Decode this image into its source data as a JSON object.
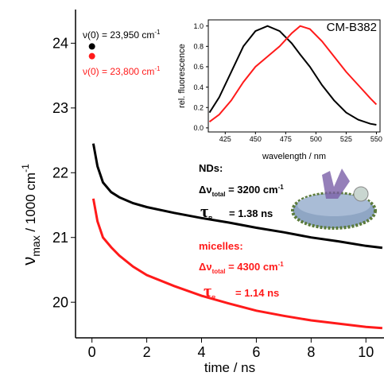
{
  "chart_data": [
    {
      "type": "line",
      "x_label": "time / ns",
      "y_label": [
        "ν",
        "max",
        " / 1000 cm",
        "-1"
      ],
      "xlim": [
        -0.6,
        10.66
      ],
      "ylim": [
        19.45,
        24.52
      ],
      "xticks": [
        0,
        2,
        4,
        6,
        8,
        10
      ],
      "yticks": [
        20,
        21,
        22,
        23,
        24
      ],
      "x": [
        0.05,
        0.2,
        0.4,
        0.7,
        1,
        1.5,
        2,
        3,
        4,
        5,
        6,
        7,
        8,
        9,
        10,
        10.6
      ],
      "series": [
        {
          "color": "#000000",
          "values": [
            22.45,
            22.1,
            21.85,
            21.7,
            21.62,
            21.53,
            21.47,
            21.38,
            21.3,
            21.23,
            21.15,
            21.08,
            21.0,
            20.94,
            20.87,
            20.84
          ]
        },
        {
          "color": "#ff1a1a",
          "values": [
            21.6,
            21.25,
            21.0,
            20.85,
            20.72,
            20.55,
            20.42,
            20.25,
            20.1,
            19.98,
            19.87,
            19.79,
            19.72,
            19.67,
            19.62,
            19.6
          ]
        }
      ],
      "points": [
        {
          "x": 0,
          "y": 23.95,
          "color": "#000000"
        },
        {
          "x": 0,
          "y": 23.8,
          "color": "#ff1a1a"
        }
      ],
      "annotations": [
        {
          "parts": [
            "ν(0) = 23,950 cm",
            "-1"
          ]
        },
        {
          "parts": [
            "ν(0) = 23,800 cm",
            "-1"
          ]
        },
        {
          "parts": [
            "NDs:"
          ]
        },
        {
          "parts": [
            "Δν",
            "total",
            " = 3200 cm",
            "-1"
          ]
        },
        {
          "parts": [
            "τ",
            "R",
            "= 1.38 ns"
          ]
        },
        {
          "parts": [
            "micelles:"
          ]
        },
        {
          "parts": [
            "Δν",
            "total",
            " = 4300 cm",
            "-1"
          ]
        },
        {
          "parts": [
            "τ",
            "R",
            "= 1.14 ns"
          ]
        }
      ]
    },
    {
      "type": "line",
      "title": "CM-B382",
      "x_label": "wavelength / nm",
      "y_label": "rel. fluorescence",
      "xlim": [
        411,
        553
      ],
      "ylim": [
        -0.04,
        1.06
      ],
      "xticks": [
        425,
        450,
        475,
        500,
        525,
        550
      ],
      "yticks": [
        {
          "value": 0,
          "label": "0.0"
        },
        {
          "value": 0.2,
          "label": "0.2"
        },
        {
          "value": 0.4,
          "label": "0.4"
        },
        {
          "value": 0.6,
          "label": "0.6"
        },
        {
          "value": 0.8,
          "label": "0.8"
        },
        {
          "value": 1,
          "label": "1.0"
        }
      ],
      "x": [
        412,
        420,
        430,
        440,
        450,
        460,
        470,
        480,
        487,
        495,
        505,
        515,
        525,
        535,
        545,
        550
      ],
      "series": [
        {
          "color": "#000000",
          "values": [
            0.15,
            0.3,
            0.55,
            0.8,
            0.95,
            1.0,
            0.95,
            0.83,
            0.72,
            0.6,
            0.42,
            0.27,
            0.15,
            0.08,
            0.04,
            0.03
          ]
        },
        {
          "color": "#ff1a1a",
          "values": [
            0.06,
            0.13,
            0.27,
            0.45,
            0.6,
            0.7,
            0.8,
            0.93,
            1.0,
            0.97,
            0.85,
            0.7,
            0.55,
            0.42,
            0.29,
            0.23
          ]
        }
      ]
    }
  ]
}
